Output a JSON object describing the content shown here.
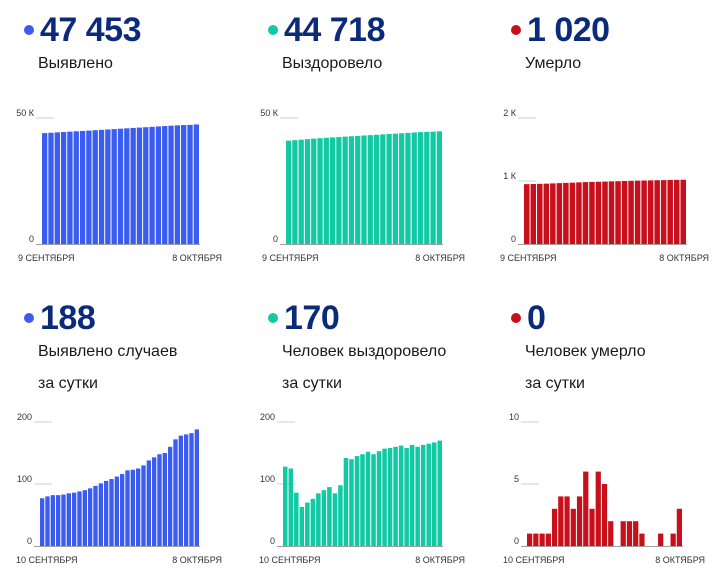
{
  "colors": {
    "blue": "#3a5cf0",
    "teal": "#11c9a3",
    "red": "#c8101c",
    "number": "#0b2a7a"
  },
  "panels": [
    {
      "value": "47 453",
      "label_lines": [
        "Выявлено"
      ],
      "color": "blue",
      "icon": "dot-icon"
    },
    {
      "value": "44 718",
      "label_lines": [
        "Выздоровело"
      ],
      "color": "teal",
      "icon": "dot-icon"
    },
    {
      "value": "1 020",
      "label_lines": [
        "Умерло"
      ],
      "color": "red",
      "icon": "dot-icon"
    },
    {
      "value": "188",
      "label_lines": [
        "Выявлено случаев",
        "за сутки"
      ],
      "color": "blue",
      "icon": "dot-icon"
    },
    {
      "value": "170",
      "label_lines": [
        "Человек выздоровело",
        "за сутки"
      ],
      "color": "teal",
      "icon": "dot-icon"
    },
    {
      "value": "0",
      "label_lines": [
        "Человек умерло",
        "за сутки"
      ],
      "color": "red",
      "icon": "dot-icon"
    }
  ],
  "chart_data": [
    {
      "type": "bar",
      "color": "blue",
      "ylim": [
        0,
        50000
      ],
      "yticks": [
        {
          "value": 0,
          "label": "0"
        },
        {
          "value": 50000,
          "label": "50 К"
        }
      ],
      "xlabels": [
        "9 СЕНТЯБРЯ",
        "8 ОКТЯБРЯ"
      ],
      "values": [
        44000,
        44150,
        44300,
        44440,
        44580,
        44720,
        44860,
        45000,
        45150,
        45300,
        45450,
        45600,
        45750,
        45900,
        46050,
        46200,
        46350,
        46500,
        46650,
        46800,
        46940,
        47080,
        47200,
        47270,
        47453
      ]
    },
    {
      "type": "bar",
      "color": "teal",
      "ylim": [
        0,
        50000
      ],
      "yticks": [
        {
          "value": 0,
          "label": "0"
        },
        {
          "value": 50000,
          "label": "50 К"
        }
      ],
      "xlabels": [
        "9 СЕНТЯБРЯ",
        "8 ОКТЯБРЯ"
      ],
      "values": [
        41000,
        41200,
        41400,
        41600,
        41800,
        42000,
        42150,
        42300,
        42450,
        42600,
        42750,
        42900,
        43050,
        43200,
        43350,
        43500,
        43650,
        43800,
        43950,
        44100,
        44250,
        44400,
        44500,
        44600,
        44718
      ]
    },
    {
      "type": "bar",
      "color": "red",
      "ylim": [
        0,
        2000
      ],
      "yticks": [
        {
          "value": 0,
          "label": "0"
        },
        {
          "value": 1000,
          "label": "1 К"
        },
        {
          "value": 2000,
          "label": "2 К"
        }
      ],
      "xlabels": [
        "9 СЕНТЯБРЯ",
        "8 ОКТЯБРЯ"
      ],
      "values": [
        950,
        952,
        955,
        958,
        962,
        966,
        970,
        974,
        978,
        982,
        985,
        988,
        991,
        994,
        997,
        1000,
        1003,
        1006,
        1008,
        1010,
        1012,
        1014,
        1016,
        1018,
        1020
      ]
    },
    {
      "type": "bar",
      "color": "blue",
      "ylim": [
        0,
        200
      ],
      "yticks": [
        {
          "value": 0,
          "label": "0"
        },
        {
          "value": 100,
          "label": "100"
        },
        {
          "value": 200,
          "label": "200"
        }
      ],
      "xlabels": [
        "10 СЕНТЯБРЯ",
        "8 ОКТЯБРЯ"
      ],
      "values": [
        77,
        80,
        82,
        82,
        83,
        85,
        86,
        88,
        90,
        93,
        97,
        101,
        105,
        108,
        112,
        116,
        122,
        123,
        125,
        130,
        138,
        143,
        148,
        150,
        160,
        172,
        178,
        180,
        182,
        188
      ]
    },
    {
      "type": "bar",
      "color": "teal",
      "ylim": [
        0,
        200
      ],
      "yticks": [
        {
          "value": 0,
          "label": "0"
        },
        {
          "value": 100,
          "label": "100"
        },
        {
          "value": 200,
          "label": "200"
        }
      ],
      "xlabels": [
        "10 СЕНТЯБРЯ",
        "8 ОКТЯБРЯ"
      ],
      "values": [
        128,
        125,
        86,
        63,
        70,
        76,
        85,
        90,
        95,
        85,
        98,
        142,
        140,
        145,
        148,
        152,
        148,
        153,
        157,
        158,
        160,
        162,
        158,
        163,
        160,
        163,
        165,
        167,
        170
      ]
    },
    {
      "type": "bar",
      "color": "red",
      "ylim": [
        0,
        10
      ],
      "yticks": [
        {
          "value": 0,
          "label": "0"
        },
        {
          "value": 5,
          "label": "5"
        },
        {
          "value": 10,
          "label": "10"
        }
      ],
      "xlabels": [
        "10 СЕНТЯБРЯ",
        "8 ОКТЯБРЯ"
      ],
      "values": [
        1,
        1,
        1,
        1,
        3,
        4,
        4,
        3,
        4,
        6,
        3,
        6,
        5,
        2,
        0,
        2,
        2,
        2,
        1,
        0,
        0,
        1,
        0,
        1,
        3
      ]
    }
  ]
}
